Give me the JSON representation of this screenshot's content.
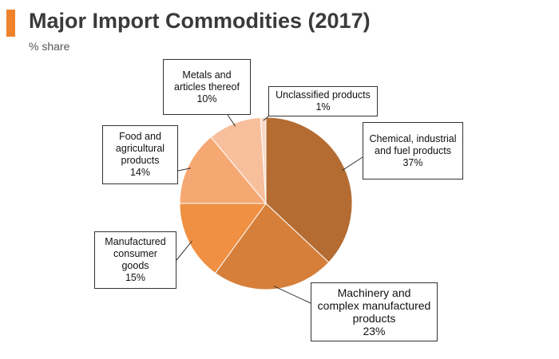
{
  "header": {
    "title": "Major Import Commodities (2017)",
    "subtitle": "% share",
    "accent_color": "#f0822b"
  },
  "chart_data": {
    "type": "pie",
    "title": "Major Import Commodities (2017)",
    "subtitle": "% share",
    "start_angle_deg": 0,
    "direction": "clockwise",
    "slices": [
      {
        "label_lines": [
          "Chemical, industrial",
          "and fuel products"
        ],
        "pct_label": "37%",
        "value": 37,
        "color": "#b46c32"
      },
      {
        "label_lines": [
          "Machinery and",
          "complex manufactured",
          "products"
        ],
        "pct_label": "23%",
        "value": 23,
        "color": "#d67f3a"
      },
      {
        "label_lines": [
          "Manufactured",
          "consumer",
          "goods"
        ],
        "pct_label": "15%",
        "value": 15,
        "color": "#ef9043"
      },
      {
        "label_lines": [
          "Food and",
          "agricultural",
          "products"
        ],
        "pct_label": "14%",
        "value": 14,
        "color": "#f6a872"
      },
      {
        "label_lines": [
          "Metals and",
          "articles thereof"
        ],
        "pct_label": "10%",
        "value": 10,
        "color": "#f8bf9d"
      },
      {
        "label_lines": [
          "Unclassified products"
        ],
        "pct_label": "1%",
        "value": 1,
        "color": "#fbd9c6"
      }
    ]
  }
}
